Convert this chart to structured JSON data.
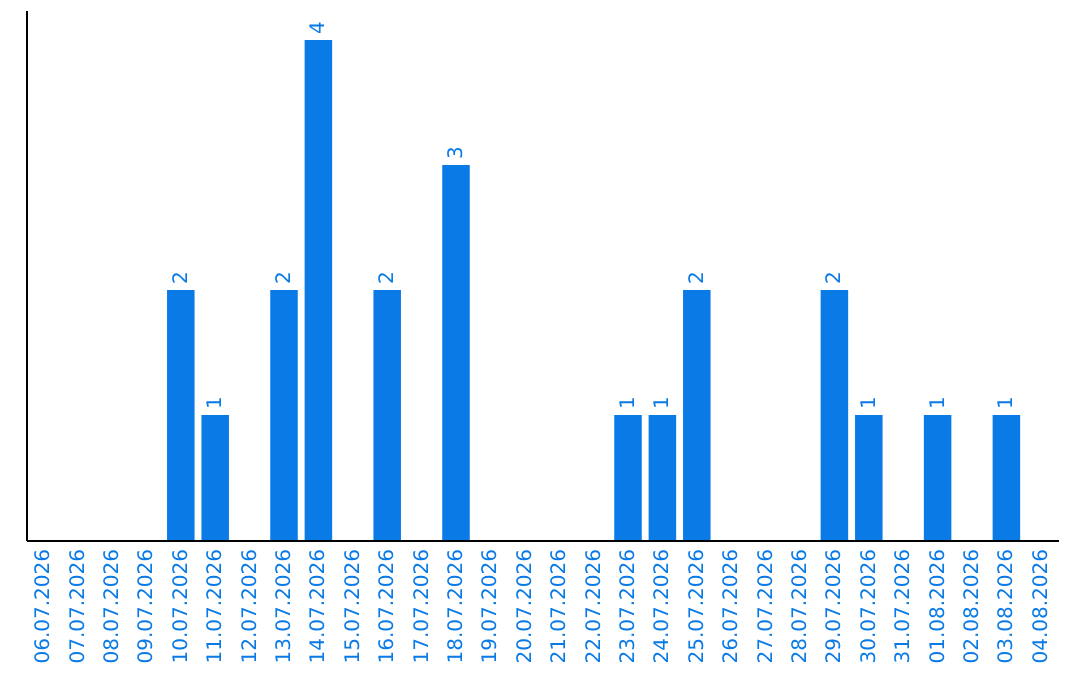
{
  "chart_data": {
    "type": "bar",
    "categories": [
      "06.07.2026",
      "07.07.2026",
      "08.07.2026",
      "09.07.2026",
      "10.07.2026",
      "11.07.2026",
      "12.07.2026",
      "13.07.2026",
      "14.07.2026",
      "15.07.2026",
      "16.07.2026",
      "17.07.2026",
      "18.07.2026",
      "19.07.2026",
      "20.07.2026",
      "21.07.2026",
      "22.07.2026",
      "23.07.2026",
      "24.07.2026",
      "25.07.2026",
      "26.07.2026",
      "27.07.2026",
      "28.07.2026",
      "29.07.2026",
      "30.07.2026",
      "31.07.2026",
      "01.08.2026",
      "02.08.2026",
      "03.08.2026",
      "04.08.2026"
    ],
    "values": [
      0,
      0,
      0,
      0,
      2,
      1,
      0,
      2,
      4,
      0,
      2,
      0,
      3,
      0,
      0,
      0,
      0,
      1,
      1,
      2,
      0,
      0,
      0,
      2,
      1,
      0,
      1,
      0,
      1,
      0
    ],
    "value_labels": [
      null,
      null,
      null,
      null,
      "2",
      "1",
      null,
      "2",
      "4",
      null,
      "2",
      null,
      "3",
      null,
      null,
      null,
      null,
      "1",
      "1",
      "2",
      null,
      null,
      null,
      "2",
      "1",
      null,
      "1",
      null,
      "1",
      null
    ],
    "color": "#0a7ae6",
    "ylim": [
      0,
      4.24
    ],
    "tick_labels": "x",
    "grid": false
  }
}
